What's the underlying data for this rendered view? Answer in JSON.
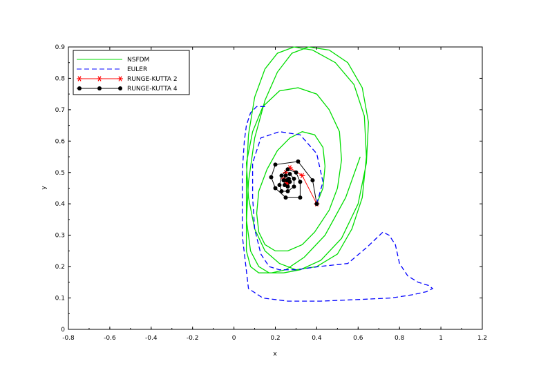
{
  "chart_data": {
    "type": "line",
    "title": "",
    "xlabel": "x",
    "ylabel": "y",
    "xlim": [
      -0.8,
      1.2
    ],
    "ylim": [
      0,
      0.9
    ],
    "x_ticks": [
      "-0.8",
      "-0.6",
      "-0.4",
      "-0.2",
      "0",
      "0.2",
      "0.4",
      "0.6",
      "0.8",
      "1",
      "1.2"
    ],
    "y_ticks": [
      "0",
      "0.1",
      "0.2",
      "0.3",
      "0.4",
      "0.5",
      "0.6",
      "0.7",
      "0.8",
      "0.9"
    ],
    "grid": false,
    "legend_position": "top-left",
    "series": [
      {
        "name": "NSFDM",
        "color": "#00dd00",
        "style": "solid",
        "marker": "none",
        "x": [
          0.4,
          0.43,
          0.44,
          0.43,
          0.39,
          0.33,
          0.27,
          0.21,
          0.16,
          0.12,
          0.11,
          0.12,
          0.15,
          0.2,
          0.26,
          0.33,
          0.39,
          0.46,
          0.5,
          0.52,
          0.51,
          0.46,
          0.4,
          0.31,
          0.22,
          0.14,
          0.09,
          0.06,
          0.07,
          0.1,
          0.15,
          0.22,
          0.3,
          0.4,
          0.5,
          0.57,
          0.62,
          0.64,
          0.63,
          0.58,
          0.49,
          0.38,
          0.29,
          0.21,
          0.15,
          0.1,
          0.07,
          0.06,
          0.06,
          0.08,
          0.12,
          0.17,
          0.24,
          0.32,
          0.42,
          0.52,
          0.6,
          0.64,
          0.65,
          0.62,
          0.55,
          0.46,
          0.36,
          0.28,
          0.21,
          0.15,
          0.1,
          0.07,
          0.06,
          0.06,
          0.08,
          0.12,
          0.18,
          0.25,
          0.34,
          0.44,
          0.54,
          0.61
        ],
        "y": [
          0.4,
          0.45,
          0.52,
          0.58,
          0.62,
          0.63,
          0.61,
          0.57,
          0.51,
          0.44,
          0.37,
          0.31,
          0.27,
          0.25,
          0.25,
          0.27,
          0.31,
          0.38,
          0.45,
          0.54,
          0.63,
          0.7,
          0.75,
          0.77,
          0.76,
          0.71,
          0.63,
          0.53,
          0.42,
          0.32,
          0.25,
          0.21,
          0.19,
          0.2,
          0.24,
          0.32,
          0.42,
          0.55,
          0.68,
          0.78,
          0.85,
          0.89,
          0.9,
          0.88,
          0.83,
          0.74,
          0.62,
          0.48,
          0.35,
          0.25,
          0.2,
          0.18,
          0.18,
          0.19,
          0.22,
          0.29,
          0.4,
          0.53,
          0.66,
          0.77,
          0.85,
          0.89,
          0.9,
          0.88,
          0.82,
          0.73,
          0.61,
          0.47,
          0.34,
          0.25,
          0.2,
          0.18,
          0.18,
          0.19,
          0.23,
          0.3,
          0.42,
          0.55
        ]
      },
      {
        "name": "EULER",
        "color": "#0000ff",
        "style": "dashed",
        "marker": "none",
        "x": [
          0.4,
          0.43,
          0.4,
          0.32,
          0.22,
          0.13,
          0.09,
          0.09,
          0.1,
          0.13,
          0.17,
          0.22,
          0.3,
          0.41,
          0.55,
          0.64,
          0.72,
          0.75,
          0.78,
          0.8,
          0.84,
          0.89,
          0.94,
          0.96,
          0.93,
          0.86,
          0.76,
          0.6,
          0.42,
          0.26,
          0.14,
          0.07,
          0.04,
          0.04,
          0.05,
          0.06,
          0.08,
          0.11,
          0.15
        ],
        "y": [
          0.4,
          0.47,
          0.56,
          0.62,
          0.63,
          0.61,
          0.53,
          0.42,
          0.32,
          0.24,
          0.2,
          0.19,
          0.19,
          0.2,
          0.21,
          0.26,
          0.31,
          0.3,
          0.27,
          0.21,
          0.17,
          0.15,
          0.14,
          0.13,
          0.12,
          0.11,
          0.1,
          0.095,
          0.09,
          0.09,
          0.1,
          0.13,
          0.3,
          0.5,
          0.6,
          0.65,
          0.69,
          0.71,
          0.71
        ]
      },
      {
        "name": "RUNGE-KUTTA 2",
        "color": "#ff0000",
        "style": "solid",
        "marker": "star",
        "x": [
          0.4,
          0.33,
          0.27,
          0.25,
          0.24,
          0.25,
          0.26,
          0.26
        ],
        "y": [
          0.4,
          0.49,
          0.515,
          0.5,
          0.48,
          0.47,
          0.465,
          0.47
        ]
      },
      {
        "name": "RUNGE-KUTTA 4",
        "color": "#000000",
        "style": "solid",
        "marker": "circle",
        "x": [
          0.4,
          0.38,
          0.31,
          0.2,
          0.18,
          0.2,
          0.25,
          0.32,
          0.32,
          0.3,
          0.26,
          0.23,
          0.22,
          0.23,
          0.26,
          0.29,
          0.29,
          0.27,
          0.25,
          0.24,
          0.245,
          0.26,
          0.27,
          0.265,
          0.255
        ],
        "y": [
          0.4,
          0.475,
          0.535,
          0.525,
          0.485,
          0.45,
          0.42,
          0.42,
          0.47,
          0.5,
          0.51,
          0.49,
          0.46,
          0.44,
          0.44,
          0.455,
          0.48,
          0.495,
          0.49,
          0.475,
          0.46,
          0.455,
          0.47,
          0.48,
          0.475
        ]
      }
    ]
  }
}
